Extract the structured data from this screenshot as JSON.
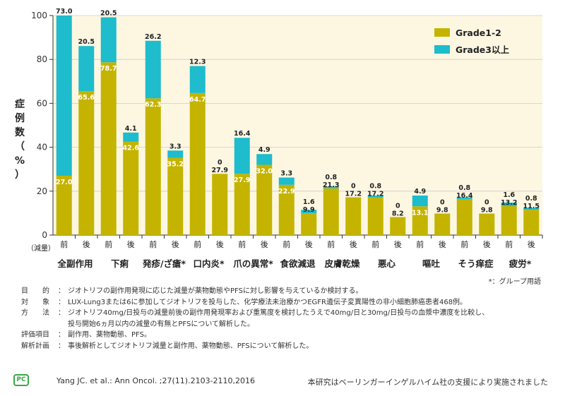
{
  "chart_data": {
    "type": "bar",
    "stacked": true,
    "ylabel": "症例数（%）",
    "ylim": [
      0,
      100
    ],
    "yticks": [
      0,
      20,
      40,
      60,
      80,
      100
    ],
    "x_prefix_label": "（減量）",
    "colors": {
      "grade12": "#c4b400",
      "grade3": "#1ebccc",
      "plot_bg": "#fdf7e2"
    },
    "legend": {
      "placement": "top-right",
      "entries": [
        "Grade1-2",
        "Grade3以上"
      ]
    },
    "series": [
      {
        "name": "Grade1-2",
        "values": [
          27.0,
          65.6,
          78.7,
          42.6,
          62.3,
          35.2,
          64.7,
          27.9,
          27.9,
          32.0,
          22.9,
          9.9,
          21.3,
          17.2,
          17.2,
          8.2,
          13.1,
          9.8,
          16.4,
          9.8,
          13.2,
          11.5
        ]
      },
      {
        "name": "Grade3以上",
        "values": [
          73.0,
          20.5,
          20.5,
          4.1,
          26.2,
          3.3,
          12.3,
          0,
          16.4,
          4.9,
          3.3,
          1.6,
          0.8,
          0,
          0.8,
          0,
          4.9,
          0,
          0.8,
          0,
          1.6,
          0.8
        ]
      }
    ],
    "bottom_labels": [
      "27.0",
      "65.6",
      "78.7",
      "42.6",
      "62.3",
      "35.2",
      "64.7",
      "27.9",
      "27.9",
      "32.0",
      "22.9",
      "9.9",
      "21.3",
      "17.2",
      "17.2",
      "8.2",
      "13.1",
      "9.8",
      "16.4",
      "9.8",
      "13.2",
      "11.5"
    ],
    "top_labels": [
      "73.0",
      "20.5",
      "20.5",
      "4.1",
      "26.2",
      "3.3",
      "12.3",
      "0",
      "16.4",
      "4.9",
      "3.3",
      "1.6",
      "0.8",
      "0",
      "0.8",
      "0",
      "4.9",
      "0",
      "0.8",
      "0",
      "1.6",
      "0.8"
    ],
    "bar_categories": [
      "前",
      "後",
      "前",
      "後",
      "前",
      "後",
      "前",
      "後",
      "前",
      "後",
      "前",
      "後",
      "前",
      "後",
      "前",
      "後",
      "前",
      "後",
      "前",
      "後",
      "前",
      "後"
    ],
    "groups": [
      "全副作用",
      "下痢",
      "発疹/ざ瘡*",
      "口内炎*",
      "爪の異常*",
      "食欲減退",
      "皮膚乾燥",
      "悪心",
      "嘔吐",
      "そう痒症",
      "疲労*"
    ],
    "footnote": "*：グループ用語"
  },
  "notes": [
    {
      "key": "目　　的",
      "text": "ジオトリフの副作用発現に応じた減量が薬物動態やPFSに対し影響を与えているか検討する。"
    },
    {
      "key": "対　　象",
      "text": "LUX-Lung3または6に参加してジオトリフを投与した、化学療法未治療かつEGFR遺伝子変異陽性の非小細胞肺癌患者468例。"
    },
    {
      "key": "方　　法",
      "text": "ジオトリフ40mg/日投与の減量前後の副作用発現率および重篤度を検討したうえで40mg/日と30mg/日投与の血漿中濃度を比較し、"
    },
    {
      "key": "",
      "text": "投与開始6ヵ月以内の減量の有無とPFSについて解析した。"
    },
    {
      "key": "評価項目",
      "text": "副作用、薬物動態、PFS。"
    },
    {
      "key": "解析計画",
      "text": "事後解析としてジオトリフ減量と副作用、薬物動態、PFSについて解析した。"
    }
  ],
  "logo_text": "PC",
  "citation": "Yang JC. et al.: Ann Oncol. ;27(11).2103-2110,2016",
  "support": "本研究はベーリンガーインゲルハイム社の支援により実施されました"
}
